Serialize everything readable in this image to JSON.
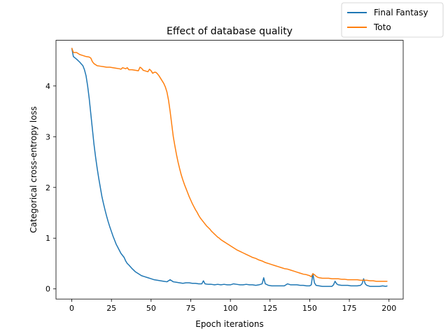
{
  "chart_data": {
    "type": "line",
    "title": "Effect of database quality",
    "xlabel": "Epoch iterations",
    "ylabel": "Categorical cross-entropy loss",
    "xlim": [
      -9.95,
      208.95
    ],
    "ylim": [
      -0.2,
      4.9
    ],
    "xticks": [
      0,
      25,
      50,
      75,
      100,
      125,
      150,
      175,
      200
    ],
    "yticks": [
      0,
      1,
      2,
      3,
      4
    ],
    "grid": false,
    "legend": "top-right",
    "series": [
      {
        "name": "Final Fantasy",
        "color": "#1f77b4",
        "points": [
          [
            0,
            4.75
          ],
          [
            1,
            4.58
          ],
          [
            3,
            4.53
          ],
          [
            5,
            4.47
          ],
          [
            7,
            4.4
          ],
          [
            8,
            4.32
          ],
          [
            9,
            4.2
          ],
          [
            10,
            4.0
          ],
          [
            11,
            3.75
          ],
          [
            12,
            3.45
          ],
          [
            13,
            3.15
          ],
          [
            14,
            2.85
          ],
          [
            15,
            2.6
          ],
          [
            16,
            2.38
          ],
          [
            17,
            2.18
          ],
          [
            18,
            2.0
          ],
          [
            19,
            1.82
          ],
          [
            20,
            1.68
          ],
          [
            21,
            1.55
          ],
          [
            22,
            1.43
          ],
          [
            23,
            1.32
          ],
          [
            24,
            1.22
          ],
          [
            25,
            1.13
          ],
          [
            26,
            1.04
          ],
          [
            27,
            0.96
          ],
          [
            28,
            0.88
          ],
          [
            29,
            0.82
          ],
          [
            30,
            0.76
          ],
          [
            31,
            0.7
          ],
          [
            32,
            0.66
          ],
          [
            33,
            0.62
          ],
          [
            34,
            0.55
          ],
          [
            35,
            0.5
          ],
          [
            36,
            0.47
          ],
          [
            38,
            0.4
          ],
          [
            40,
            0.34
          ],
          [
            42,
            0.3
          ],
          [
            44,
            0.26
          ],
          [
            46,
            0.24
          ],
          [
            48,
            0.22
          ],
          [
            50,
            0.2
          ],
          [
            52,
            0.18
          ],
          [
            54,
            0.17
          ],
          [
            56,
            0.16
          ],
          [
            58,
            0.15
          ],
          [
            60,
            0.14
          ],
          [
            62,
            0.18
          ],
          [
            64,
            0.14
          ],
          [
            66,
            0.13
          ],
          [
            68,
            0.12
          ],
          [
            70,
            0.11
          ],
          [
            72,
            0.12
          ],
          [
            74,
            0.12
          ],
          [
            76,
            0.11
          ],
          [
            78,
            0.11
          ],
          [
            80,
            0.1
          ],
          [
            82,
            0.1
          ],
          [
            83,
            0.16
          ],
          [
            84,
            0.1
          ],
          [
            86,
            0.09
          ],
          [
            88,
            0.09
          ],
          [
            90,
            0.08
          ],
          [
            92,
            0.09
          ],
          [
            94,
            0.08
          ],
          [
            96,
            0.09
          ],
          [
            98,
            0.08
          ],
          [
            100,
            0.08
          ],
          [
            102,
            0.1
          ],
          [
            104,
            0.09
          ],
          [
            106,
            0.08
          ],
          [
            108,
            0.08
          ],
          [
            110,
            0.09
          ],
          [
            112,
            0.08
          ],
          [
            114,
            0.08
          ],
          [
            116,
            0.07
          ],
          [
            118,
            0.08
          ],
          [
            120,
            0.1
          ],
          [
            121,
            0.22
          ],
          [
            122,
            0.1
          ],
          [
            124,
            0.07
          ],
          [
            126,
            0.06
          ],
          [
            128,
            0.06
          ],
          [
            130,
            0.06
          ],
          [
            132,
            0.06
          ],
          [
            134,
            0.06
          ],
          [
            136,
            0.1
          ],
          [
            138,
            0.08
          ],
          [
            140,
            0.08
          ],
          [
            142,
            0.08
          ],
          [
            144,
            0.07
          ],
          [
            146,
            0.07
          ],
          [
            148,
            0.06
          ],
          [
            150,
            0.06
          ],
          [
            151,
            0.08
          ],
          [
            152,
            0.3
          ],
          [
            153,
            0.12
          ],
          [
            154,
            0.07
          ],
          [
            156,
            0.06
          ],
          [
            158,
            0.05
          ],
          [
            160,
            0.05
          ],
          [
            162,
            0.05
          ],
          [
            164,
            0.05
          ],
          [
            165,
            0.08
          ],
          [
            166,
            0.15
          ],
          [
            167,
            0.1
          ],
          [
            168,
            0.08
          ],
          [
            170,
            0.07
          ],
          [
            172,
            0.07
          ],
          [
            174,
            0.07
          ],
          [
            176,
            0.06
          ],
          [
            178,
            0.06
          ],
          [
            180,
            0.06
          ],
          [
            182,
            0.07
          ],
          [
            183,
            0.1
          ],
          [
            184,
            0.2
          ],
          [
            185,
            0.1
          ],
          [
            186,
            0.07
          ],
          [
            188,
            0.05
          ],
          [
            190,
            0.05
          ],
          [
            192,
            0.05
          ],
          [
            194,
            0.05
          ],
          [
            196,
            0.06
          ],
          [
            198,
            0.05
          ],
          [
            199,
            0.06
          ]
        ]
      },
      {
        "name": "Toto",
        "color": "#ff7f0e",
        "points": [
          [
            0,
            4.75
          ],
          [
            1,
            4.66
          ],
          [
            3,
            4.66
          ],
          [
            5,
            4.62
          ],
          [
            7,
            4.6
          ],
          [
            9,
            4.58
          ],
          [
            11,
            4.57
          ],
          [
            12,
            4.55
          ],
          [
            13,
            4.48
          ],
          [
            14,
            4.44
          ],
          [
            16,
            4.4
          ],
          [
            18,
            4.39
          ],
          [
            20,
            4.38
          ],
          [
            22,
            4.37
          ],
          [
            24,
            4.37
          ],
          [
            26,
            4.36
          ],
          [
            28,
            4.35
          ],
          [
            30,
            4.34
          ],
          [
            31,
            4.33
          ],
          [
            32,
            4.36
          ],
          [
            33,
            4.35
          ],
          [
            34,
            4.34
          ],
          [
            35,
            4.36
          ],
          [
            36,
            4.32
          ],
          [
            38,
            4.32
          ],
          [
            40,
            4.31
          ],
          [
            42,
            4.3
          ],
          [
            43,
            4.37
          ],
          [
            44,
            4.35
          ],
          [
            45,
            4.31
          ],
          [
            46,
            4.3
          ],
          [
            48,
            4.28
          ],
          [
            49,
            4.33
          ],
          [
            50,
            4.3
          ],
          [
            51,
            4.25
          ],
          [
            52,
            4.27
          ],
          [
            53,
            4.27
          ],
          [
            54,
            4.24
          ],
          [
            55,
            4.2
          ],
          [
            56,
            4.15
          ],
          [
            57,
            4.1
          ],
          [
            58,
            4.05
          ],
          [
            59,
            3.98
          ],
          [
            60,
            3.88
          ],
          [
            61,
            3.72
          ],
          [
            62,
            3.5
          ],
          [
            63,
            3.25
          ],
          [
            64,
            3.0
          ],
          [
            65,
            2.82
          ],
          [
            66,
            2.65
          ],
          [
            67,
            2.5
          ],
          [
            68,
            2.37
          ],
          [
            69,
            2.25
          ],
          [
            70,
            2.15
          ],
          [
            71,
            2.06
          ],
          [
            72,
            1.98
          ],
          [
            73,
            1.9
          ],
          [
            74,
            1.82
          ],
          [
            75,
            1.75
          ],
          [
            76,
            1.68
          ],
          [
            77,
            1.62
          ],
          [
            78,
            1.56
          ],
          [
            79,
            1.51
          ],
          [
            80,
            1.45
          ],
          [
            81,
            1.4
          ],
          [
            82,
            1.36
          ],
          [
            83,
            1.32
          ],
          [
            84,
            1.28
          ],
          [
            85,
            1.24
          ],
          [
            86,
            1.21
          ],
          [
            87,
            1.18
          ],
          [
            88,
            1.14
          ],
          [
            89,
            1.11
          ],
          [
            90,
            1.08
          ],
          [
            91,
            1.05
          ],
          [
            92,
            1.02
          ],
          [
            93,
            1.0
          ],
          [
            94,
            0.97
          ],
          [
            95,
            0.95
          ],
          [
            96,
            0.93
          ],
          [
            97,
            0.91
          ],
          [
            98,
            0.89
          ],
          [
            99,
            0.87
          ],
          [
            100,
            0.85
          ],
          [
            102,
            0.81
          ],
          [
            104,
            0.77
          ],
          [
            106,
            0.74
          ],
          [
            108,
            0.71
          ],
          [
            110,
            0.68
          ],
          [
            112,
            0.65
          ],
          [
            114,
            0.62
          ],
          [
            116,
            0.6
          ],
          [
            118,
            0.57
          ],
          [
            120,
            0.55
          ],
          [
            122,
            0.52
          ],
          [
            124,
            0.5
          ],
          [
            126,
            0.48
          ],
          [
            128,
            0.46
          ],
          [
            130,
            0.44
          ],
          [
            132,
            0.42
          ],
          [
            134,
            0.4
          ],
          [
            136,
            0.39
          ],
          [
            138,
            0.37
          ],
          [
            140,
            0.35
          ],
          [
            142,
            0.33
          ],
          [
            144,
            0.31
          ],
          [
            146,
            0.29
          ],
          [
            148,
            0.28
          ],
          [
            150,
            0.26
          ],
          [
            151,
            0.24
          ],
          [
            152,
            0.3
          ],
          [
            153,
            0.28
          ],
          [
            154,
            0.25
          ],
          [
            155,
            0.23
          ],
          [
            156,
            0.22
          ],
          [
            158,
            0.21
          ],
          [
            160,
            0.21
          ],
          [
            162,
            0.21
          ],
          [
            164,
            0.2
          ],
          [
            166,
            0.2
          ],
          [
            168,
            0.2
          ],
          [
            170,
            0.19
          ],
          [
            172,
            0.19
          ],
          [
            174,
            0.18
          ],
          [
            176,
            0.18
          ],
          [
            178,
            0.18
          ],
          [
            180,
            0.18
          ],
          [
            182,
            0.17
          ],
          [
            184,
            0.17
          ],
          [
            186,
            0.17
          ],
          [
            188,
            0.16
          ],
          [
            190,
            0.16
          ],
          [
            192,
            0.15
          ],
          [
            194,
            0.15
          ],
          [
            196,
            0.15
          ],
          [
            199,
            0.15
          ]
        ]
      }
    ]
  }
}
